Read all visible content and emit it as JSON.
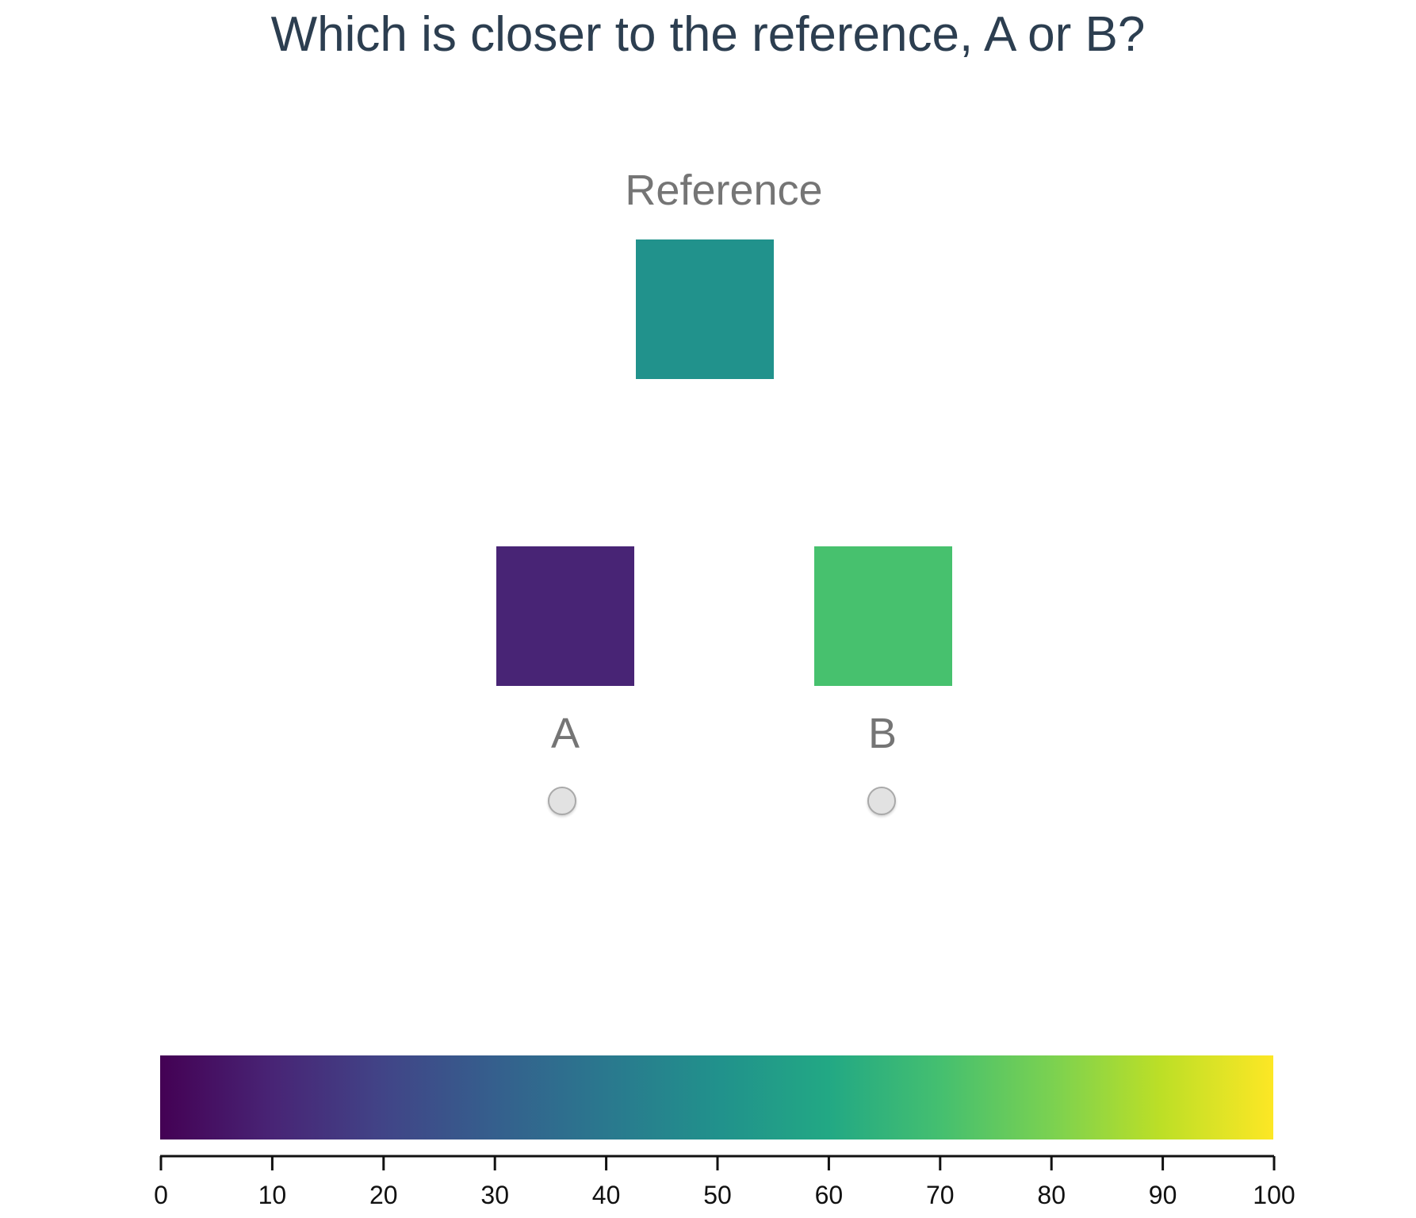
{
  "question": "Which is closer to the reference, A or B?",
  "reference": {
    "label": "Reference",
    "color": "#21928c"
  },
  "option_a": {
    "label": "A",
    "color": "#482475"
  },
  "option_b": {
    "label": "B",
    "color": "#47c16e"
  },
  "colorbar": {
    "colormap": "viridis",
    "min": 0,
    "max": 100,
    "ticks": [
      "0",
      "10",
      "20",
      "30",
      "40",
      "50",
      "60",
      "70",
      "80",
      "90",
      "100"
    ],
    "stops": [
      "#440154",
      "#482475",
      "#414487",
      "#355f8d",
      "#2a788e",
      "#21918c",
      "#22a884",
      "#44bf70",
      "#7ad151",
      "#bddf26",
      "#fde725"
    ]
  }
}
